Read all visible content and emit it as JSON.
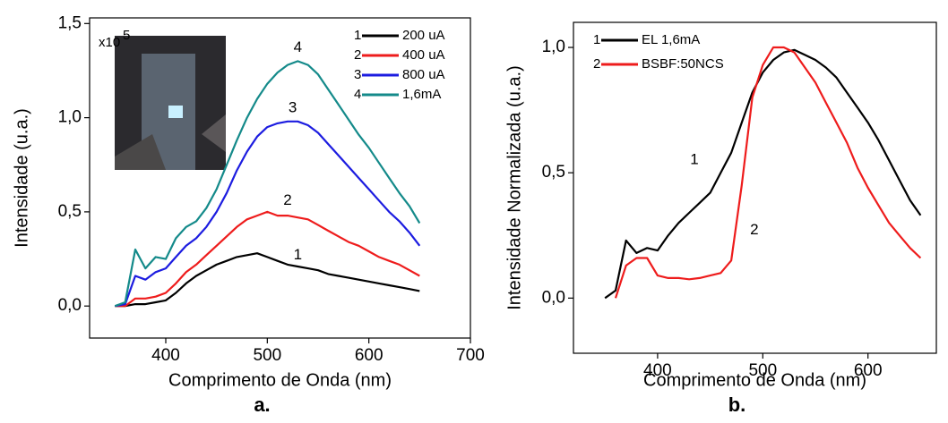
{
  "chart_data": [
    {
      "type": "line",
      "panel_label": "a.",
      "x_label": "Comprimento de Onda (nm)",
      "y_label": "Intensidade (u.a.)",
      "y_scale_label": {
        "base": "x10",
        "exponent": "5"
      },
      "xlim": [
        325,
        700
      ],
      "ylim": [
        -0.17,
        1.53
      ],
      "xticks": [
        400,
        500,
        600,
        700
      ],
      "yticks": [
        {
          "value": 0,
          "label": "0,0"
        },
        {
          "value": 0.5,
          "label": "0,5"
        },
        {
          "value": 1.0,
          "label": "1,0"
        },
        {
          "value": 1.5,
          "label": "1,5"
        }
      ],
      "x": [
        350,
        360,
        370,
        380,
        390,
        400,
        410,
        420,
        430,
        440,
        450,
        460,
        470,
        480,
        490,
        500,
        510,
        520,
        530,
        540,
        550,
        560,
        570,
        580,
        590,
        600,
        610,
        620,
        630,
        640,
        650
      ],
      "series": [
        {
          "name": "200 uA",
          "legend_number": "1",
          "color": "#000000",
          "values": [
            0,
            0,
            0.01,
            0.01,
            0.02,
            0.03,
            0.07,
            0.12,
            0.16,
            0.19,
            0.22,
            0.24,
            0.26,
            0.27,
            0.28,
            0.26,
            0.24,
            0.22,
            0.21,
            0.2,
            0.19,
            0.17,
            0.16,
            0.15,
            0.14,
            0.13,
            0.12,
            0.11,
            0.1,
            0.09,
            0.08
          ]
        },
        {
          "name": "400 uA",
          "legend_number": "2",
          "color": "#ee1c1c",
          "values": [
            0,
            0,
            0.04,
            0.04,
            0.05,
            0.07,
            0.12,
            0.18,
            0.22,
            0.27,
            0.32,
            0.37,
            0.42,
            0.46,
            0.48,
            0.5,
            0.48,
            0.48,
            0.47,
            0.46,
            0.43,
            0.4,
            0.37,
            0.34,
            0.32,
            0.29,
            0.26,
            0.24,
            0.22,
            0.19,
            0.16
          ]
        },
        {
          "name": "800 uA",
          "legend_number": "3",
          "color": "#1c1ce0",
          "values": [
            0,
            0.01,
            0.16,
            0.14,
            0.18,
            0.2,
            0.26,
            0.32,
            0.36,
            0.42,
            0.5,
            0.6,
            0.72,
            0.82,
            0.9,
            0.95,
            0.97,
            0.98,
            0.98,
            0.96,
            0.92,
            0.86,
            0.8,
            0.74,
            0.68,
            0.62,
            0.56,
            0.5,
            0.45,
            0.39,
            0.32
          ]
        },
        {
          "name": "1,6mA",
          "legend_number": "4",
          "color": "#148a8a",
          "values": [
            0,
            0.02,
            0.3,
            0.2,
            0.26,
            0.25,
            0.36,
            0.42,
            0.45,
            0.52,
            0.62,
            0.75,
            0.88,
            1.0,
            1.1,
            1.18,
            1.24,
            1.28,
            1.3,
            1.28,
            1.23,
            1.15,
            1.07,
            0.99,
            0.91,
            0.84,
            0.76,
            0.68,
            0.6,
            0.53,
            0.44
          ]
        }
      ],
      "annotations": [
        {
          "text": "1",
          "x": 530,
          "y": 0.27
        },
        {
          "text": "2",
          "x": 520,
          "y": 0.56
        },
        {
          "text": "3",
          "x": 525,
          "y": 1.05
        },
        {
          "text": "4",
          "x": 530,
          "y": 1.37
        }
      ]
    },
    {
      "type": "line",
      "panel_label": "b.",
      "x_label": "Comprimento de Onda (nm)",
      "y_label": "Intensidade Normalizada (u.a.)",
      "xlim": [
        320,
        665
      ],
      "ylim": [
        -0.22,
        1.1
      ],
      "xticks": [
        400,
        500,
        600
      ],
      "yticks": [
        {
          "value": 0,
          "label": "0,0"
        },
        {
          "value": 0.5,
          "label": "0,5"
        },
        {
          "value": 1.0,
          "label": "1,0"
        }
      ],
      "x": [
        350,
        360,
        370,
        380,
        390,
        400,
        410,
        420,
        430,
        440,
        450,
        460,
        470,
        480,
        490,
        500,
        510,
        520,
        530,
        540,
        550,
        560,
        570,
        580,
        590,
        600,
        610,
        620,
        630,
        640,
        650
      ],
      "series": [
        {
          "name": "EL 1,6mA",
          "legend_number": "1",
          "color": "#000000",
          "values": [
            0,
            0.03,
            0.23,
            0.18,
            0.2,
            0.19,
            0.25,
            0.3,
            0.34,
            0.38,
            0.42,
            0.5,
            0.58,
            0.7,
            0.82,
            0.9,
            0.95,
            0.98,
            0.99,
            0.97,
            0.95,
            0.92,
            0.88,
            0.82,
            0.76,
            0.7,
            0.63,
            0.55,
            0.47,
            0.39,
            0.33
          ]
        },
        {
          "name": "BSBF:50NCS",
          "legend_number": "2",
          "color": "#ee1c1c",
          "values": [
            null,
            0,
            0.13,
            0.16,
            0.16,
            0.09,
            0.08,
            0.08,
            0.075,
            0.08,
            0.09,
            0.1,
            0.15,
            0.45,
            0.8,
            0.93,
            1.0,
            1.0,
            0.98,
            0.92,
            0.86,
            0.78,
            0.7,
            0.62,
            0.52,
            0.44,
            0.37,
            0.3,
            0.25,
            0.2,
            0.16
          ]
        }
      ],
      "annotations": [
        {
          "text": "1",
          "x": 435,
          "y": 0.55
        },
        {
          "text": "2",
          "x": 492,
          "y": 0.27
        }
      ]
    }
  ]
}
